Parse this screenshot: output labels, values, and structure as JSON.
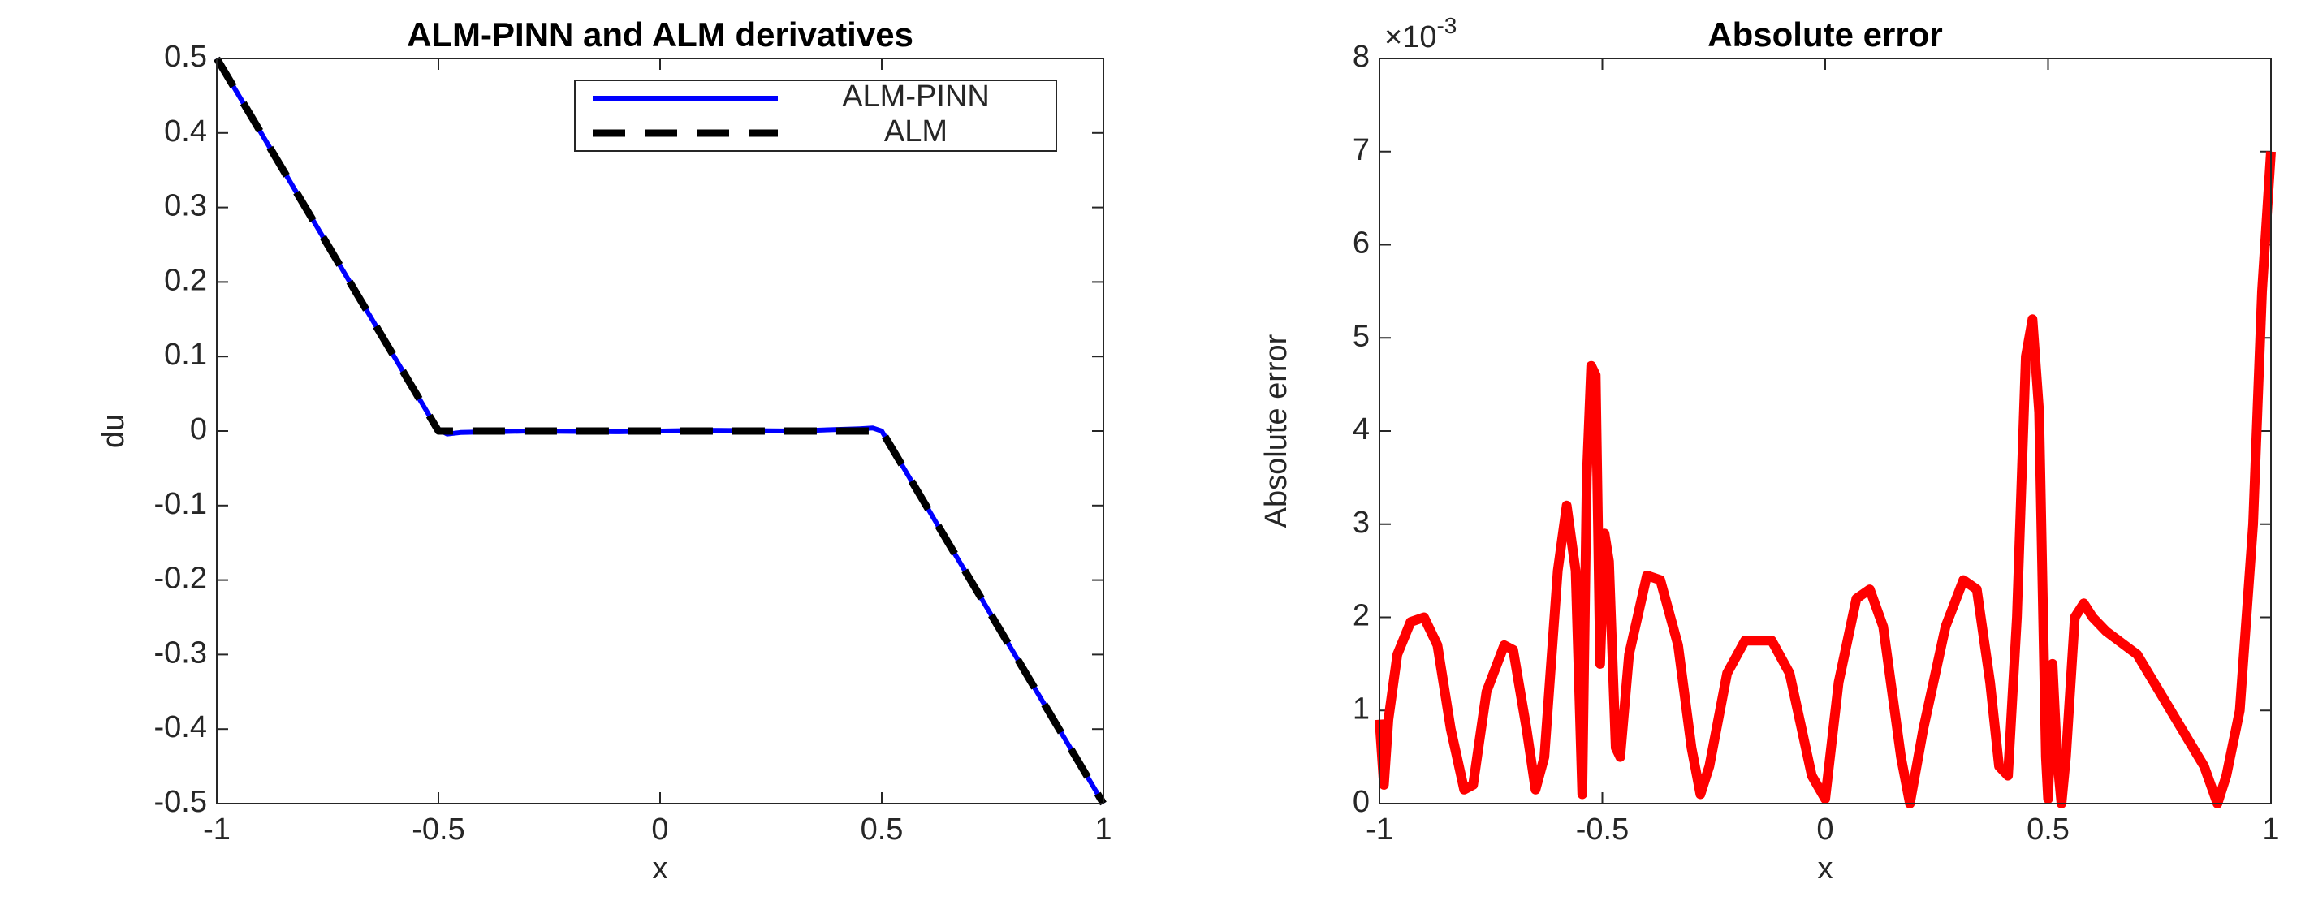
{
  "chart_data": [
    {
      "type": "line",
      "title": "ALM-PINN and ALM derivatives",
      "xlabel": "x",
      "ylabel": "du",
      "xlim": [
        -1,
        1
      ],
      "ylim": [
        -0.5,
        0.5
      ],
      "xticks": [
        -1,
        -0.5,
        0,
        0.5,
        1
      ],
      "yticks": [
        -0.5,
        -0.4,
        -0.3,
        -0.2,
        -0.1,
        0,
        0.1,
        0.2,
        0.3,
        0.4,
        0.5
      ],
      "legend": "upper right",
      "series": [
        {
          "name": "ALM-PINN",
          "color": "#0000ff",
          "style": "solid",
          "x": [
            -1,
            -0.75,
            -0.52,
            -0.5,
            -0.48,
            -0.45,
            -0.3,
            -0.1,
            0.1,
            0.3,
            0.45,
            0.48,
            0.5,
            0.52,
            0.75,
            1
          ],
          "values": [
            0.5,
            0.25,
            0.02,
            0.002,
            -0.004,
            -0.002,
            0,
            -0.001,
            0.001,
            0,
            0.003,
            0.004,
            0,
            -0.02,
            -0.25,
            -0.5
          ]
        },
        {
          "name": "ALM",
          "color": "#000000",
          "style": "dashed",
          "x": [
            -1,
            -0.5,
            0.5,
            1
          ],
          "values": [
            0.5,
            0,
            0,
            -0.5
          ]
        }
      ]
    },
    {
      "type": "line",
      "title": "Absolute error",
      "xlabel": "x",
      "ylabel": "Absolute error",
      "exponent_label": {
        "base": "×10",
        "power": "-3"
      },
      "xlim": [
        -1,
        1
      ],
      "ylim": [
        0,
        8
      ],
      "xticks": [
        -1,
        -0.5,
        0,
        0.5,
        1
      ],
      "yticks": [
        0,
        1,
        2,
        3,
        4,
        5,
        6,
        7,
        8
      ],
      "series": [
        {
          "name": "Absolute error",
          "color": "#ff0000",
          "style": "solid",
          "x": [
            -1,
            -0.99,
            -0.98,
            -0.96,
            -0.93,
            -0.9,
            -0.87,
            -0.84,
            -0.81,
            -0.79,
            -0.76,
            -0.72,
            -0.7,
            -0.67,
            -0.65,
            -0.63,
            -0.6,
            -0.58,
            -0.56,
            -0.545,
            -0.535,
            -0.525,
            -0.515,
            -0.505,
            -0.495,
            -0.485,
            -0.47,
            -0.46,
            -0.44,
            -0.4,
            -0.37,
            -0.33,
            -0.3,
            -0.28,
            -0.26,
            -0.22,
            -0.18,
            -0.12,
            -0.08,
            -0.03,
            0,
            0.03,
            0.07,
            0.1,
            0.13,
            0.17,
            0.19,
            0.22,
            0.27,
            0.31,
            0.34,
            0.37,
            0.39,
            0.41,
            0.43,
            0.45,
            0.465,
            0.48,
            0.495,
            0.5,
            0.51,
            0.52,
            0.53,
            0.54,
            0.56,
            0.58,
            0.6,
            0.63,
            0.7,
            0.75,
            0.8,
            0.85,
            0.88,
            0.9,
            0.93,
            0.96,
            0.98,
            1
          ],
          "values": [
            0.9,
            0.2,
            0.9,
            1.6,
            1.95,
            2.0,
            1.7,
            0.8,
            0.15,
            0.2,
            1.2,
            1.7,
            1.65,
            0.8,
            0.15,
            0.5,
            2.5,
            3.2,
            2.5,
            0.1,
            3.5,
            4.7,
            4.6,
            1.5,
            2.9,
            2.6,
            0.6,
            0.5,
            1.6,
            2.45,
            2.4,
            1.7,
            0.6,
            0.1,
            0.4,
            1.4,
            1.75,
            1.75,
            1.4,
            0.3,
            0.05,
            1.3,
            2.2,
            2.3,
            1.9,
            0.5,
            0.0,
            0.8,
            1.9,
            2.4,
            2.3,
            1.3,
            0.4,
            0.3,
            2.0,
            4.8,
            5.2,
            4.2,
            0.5,
            0.05,
            1.5,
            0.5,
            0.0,
            0.5,
            2.0,
            2.15,
            2.0,
            1.85,
            1.6,
            1.2,
            0.8,
            0.4,
            0.0,
            0.3,
            1.0,
            3.0,
            5.5,
            7.0
          ]
        }
      ]
    }
  ]
}
